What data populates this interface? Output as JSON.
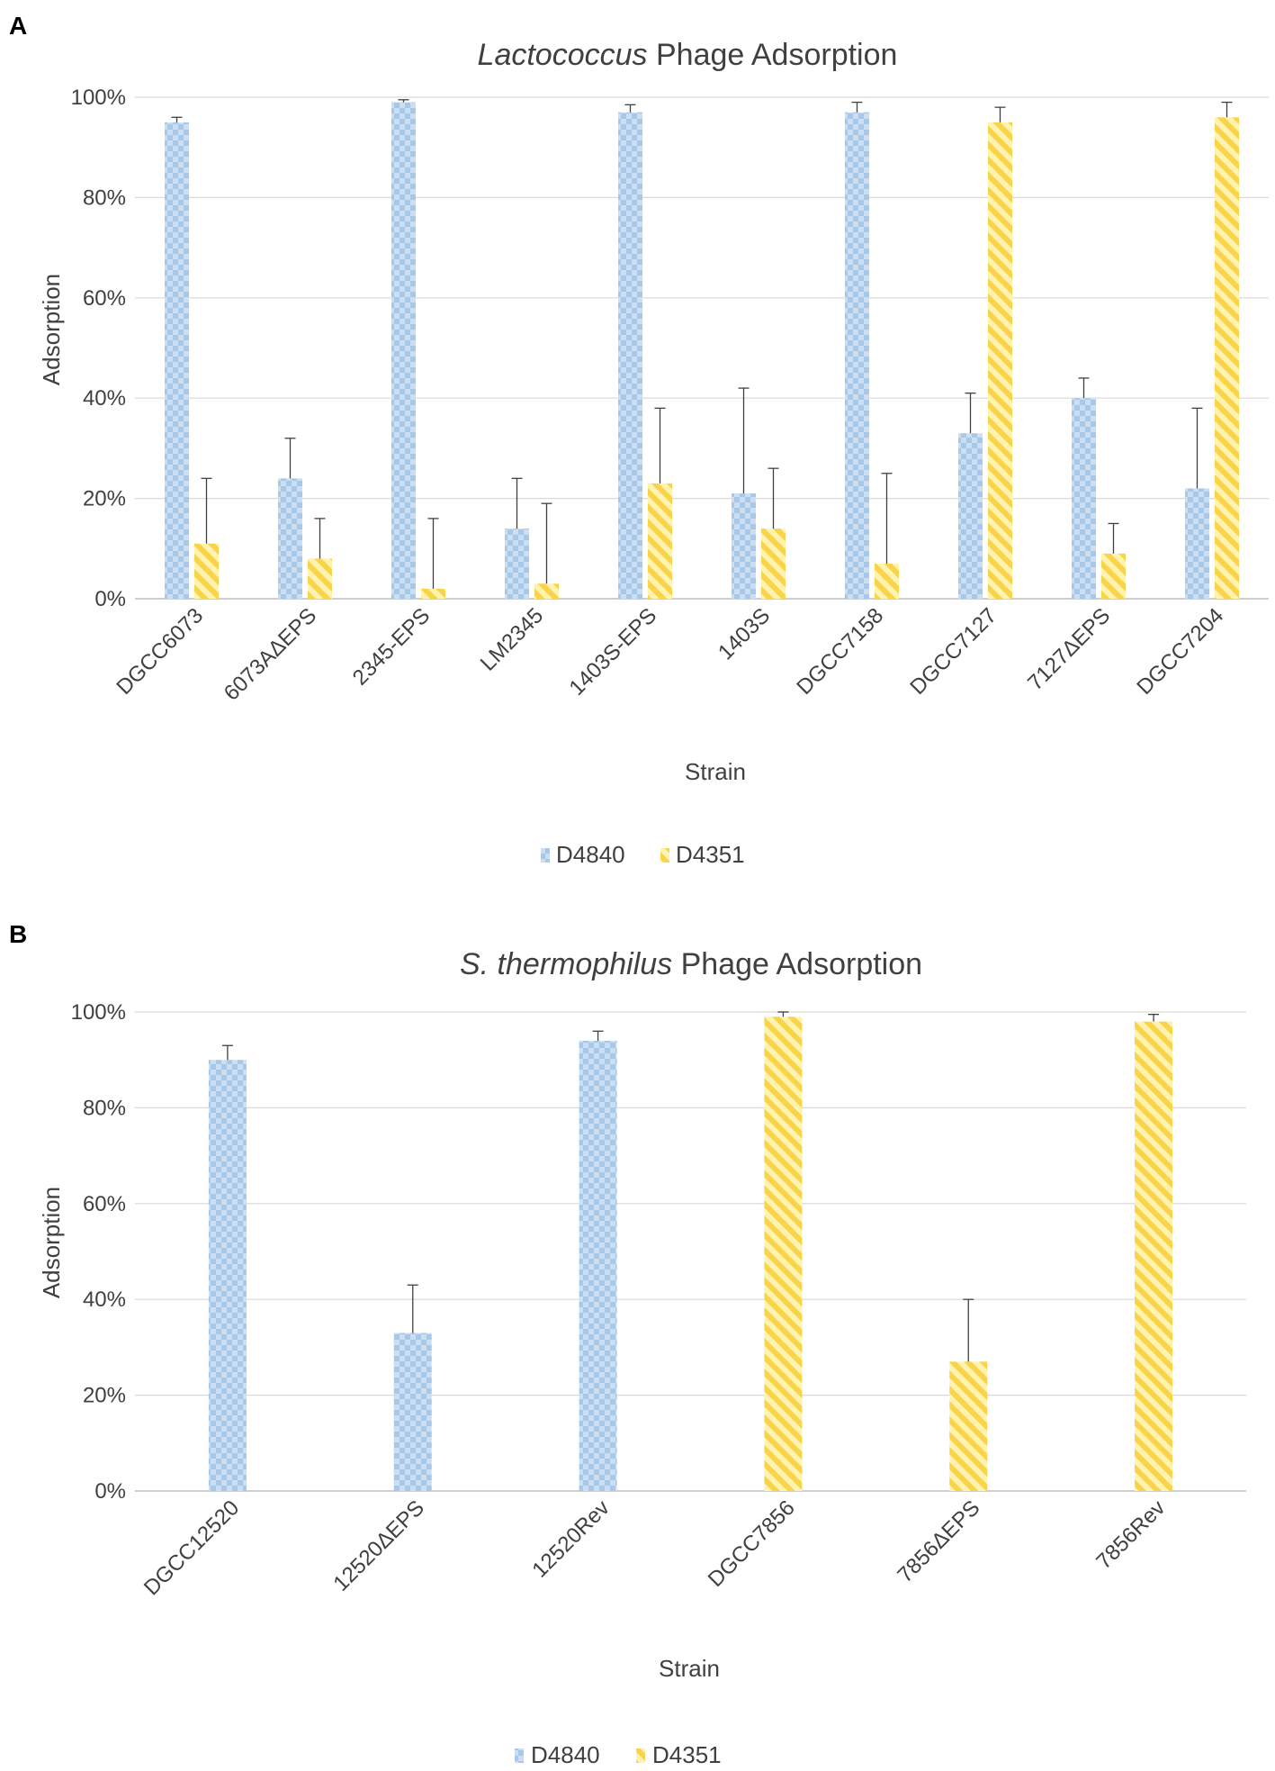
{
  "chart_data": [
    {
      "panel": "A",
      "type": "bar",
      "title_italic": "Lactococcus",
      "title_rest": " Phage Adsorption",
      "xlabel": "Strain",
      "ylabel": "Adsorption",
      "ylim": [
        0,
        100
      ],
      "yticks": [
        "0%",
        "20%",
        "40%",
        "60%",
        "80%",
        "100%"
      ],
      "categories": [
        "DGCC6073",
        "6073AΔEPS",
        "2345-EPS",
        "LM2345",
        "1403S-EPS",
        "1403S",
        "DGCC7158",
        "DGCC7127",
        "7127ΔEPS",
        "DGCC7204"
      ],
      "series": [
        {
          "name": "D4840",
          "values": [
            95,
            24,
            99,
            14,
            97,
            21,
            97,
            33,
            40,
            22
          ],
          "errors": [
            1,
            8,
            0.5,
            10,
            1.5,
            21,
            2,
            8,
            4,
            16
          ]
        },
        {
          "name": "D4351",
          "values": [
            11,
            8,
            2,
            3,
            23,
            14,
            7,
            95,
            9,
            96
          ],
          "errors": [
            13,
            8,
            14,
            16,
            15,
            12,
            18,
            3,
            6,
            3
          ]
        }
      ],
      "legend": [
        "D4840",
        "D4351"
      ],
      "legend_position": "bottom"
    },
    {
      "panel": "B",
      "type": "bar",
      "title_italic": "S. thermophilus",
      "title_rest": " Phage Adsorption",
      "xlabel": "Strain",
      "ylabel": "Adsorption",
      "ylim": [
        0,
        100
      ],
      "yticks": [
        "0%",
        "20%",
        "40%",
        "60%",
        "80%",
        "100%"
      ],
      "categories": [
        "DGCC12520",
        "12520ΔEPS",
        "12520Rev",
        "DGCC7856",
        "7856ΔEPS",
        "7856Rev"
      ],
      "series": [
        {
          "name": "D4840",
          "values": [
            90,
            33,
            94,
            null,
            null,
            null
          ],
          "errors": [
            3,
            10,
            2,
            null,
            null,
            null
          ]
        },
        {
          "name": "D4351",
          "values": [
            null,
            null,
            null,
            99,
            27,
            98
          ],
          "errors": [
            null,
            null,
            null,
            1,
            13,
            1.5
          ]
        }
      ],
      "legend": [
        "D4840",
        "D4351"
      ],
      "legend_position": "bottom"
    }
  ],
  "colors": {
    "blue_light": "#ccdff2",
    "blue_dark": "#a8c8ea",
    "yellow_light": "#fff3b0",
    "yellow_dark": "#f9d34a",
    "grid": "#d9d9d9",
    "axis": "#bfbfbf",
    "error": "#404040"
  }
}
